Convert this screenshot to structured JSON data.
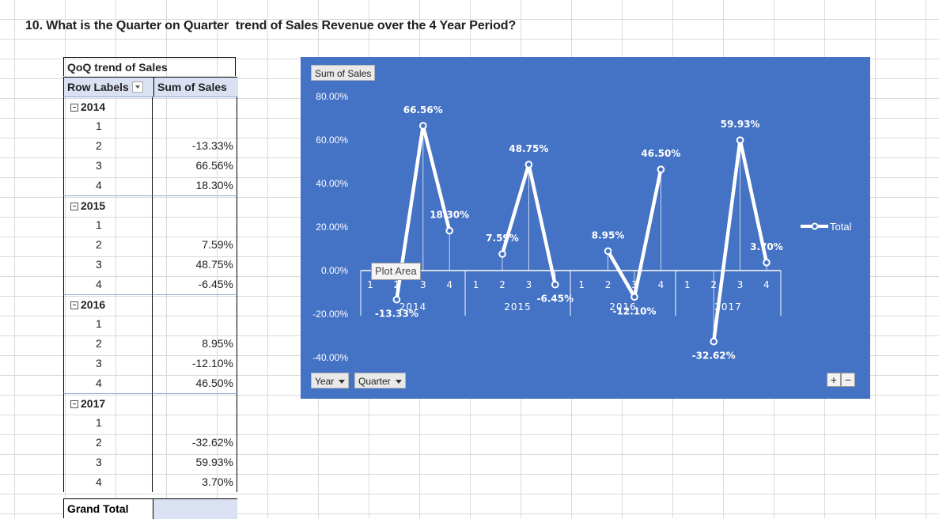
{
  "question": "10. What is the Quarter on Quarter  trend of Sales Revenue over the 4 Year Period?",
  "pivot": {
    "title": "QoQ trend of Sales",
    "col_row_labels": "Row Labels",
    "col_sum": "Sum of Sales",
    "years": [
      {
        "year": "2014",
        "quarters": [
          {
            "q": "1",
            "value": ""
          },
          {
            "q": "2",
            "value": "-13.33%"
          },
          {
            "q": "3",
            "value": "66.56%"
          },
          {
            "q": "4",
            "value": "18.30%"
          }
        ]
      },
      {
        "year": "2015",
        "quarters": [
          {
            "q": "1",
            "value": ""
          },
          {
            "q": "2",
            "value": "7.59%"
          },
          {
            "q": "3",
            "value": "48.75%"
          },
          {
            "q": "4",
            "value": "-6.45%"
          }
        ]
      },
      {
        "year": "2016",
        "quarters": [
          {
            "q": "1",
            "value": ""
          },
          {
            "q": "2",
            "value": "8.95%"
          },
          {
            "q": "3",
            "value": "-12.10%"
          },
          {
            "q": "4",
            "value": "46.50%"
          }
        ]
      },
      {
        "year": "2017",
        "quarters": [
          {
            "q": "1",
            "value": ""
          },
          {
            "q": "2",
            "value": "-32.62%"
          },
          {
            "q": "3",
            "value": "59.93%"
          },
          {
            "q": "4",
            "value": "3.70%"
          }
        ]
      }
    ],
    "grand_total": "Grand Total"
  },
  "chart_ui": {
    "value_field_button": "Sum of Sales",
    "axis_field_buttons": [
      "Year",
      "Quarter"
    ],
    "plot_area_tooltip": "Plot Area",
    "zoom_plus": "+",
    "zoom_minus": "−"
  },
  "colors": {
    "chart_background": "#4472c4",
    "series_line": "#ffffff",
    "pivot_header": "#d9e1f2"
  },
  "chart_data": {
    "type": "line",
    "title": "",
    "series": [
      {
        "name": "Total",
        "values": [
          null,
          -13.33,
          66.56,
          18.3,
          null,
          7.59,
          48.75,
          -6.45,
          null,
          8.95,
          -12.1,
          46.5,
          null,
          -32.62,
          59.93,
          3.7
        ]
      }
    ],
    "groups": [
      {
        "label": "2014",
        "categories": [
          "1",
          "2",
          "3",
          "4"
        ]
      },
      {
        "label": "2015",
        "categories": [
          "1",
          "2",
          "3",
          "4"
        ]
      },
      {
        "label": "2016",
        "categories": [
          "1",
          "2",
          "3",
          "4"
        ]
      },
      {
        "label": "2017",
        "categories": [
          "1",
          "2",
          "3",
          "4"
        ]
      }
    ],
    "data_labels": [
      "",
      "-13.33%",
      "66.56%",
      "18.30%",
      "",
      "7.59%",
      "48.75%",
      "-6.45%",
      "",
      "8.95%",
      "-12.10%",
      "46.50%",
      "",
      "-32.62%",
      "59.93%",
      "3.70%"
    ],
    "y_ticks": [
      "80.00%",
      "60.00%",
      "40.00%",
      "20.00%",
      "0.00%",
      "-20.00%",
      "-40.00%"
    ],
    "ylim": [
      -40,
      80
    ],
    "legend": {
      "position": "right",
      "entries": [
        "Total"
      ]
    },
    "grid": false
  }
}
